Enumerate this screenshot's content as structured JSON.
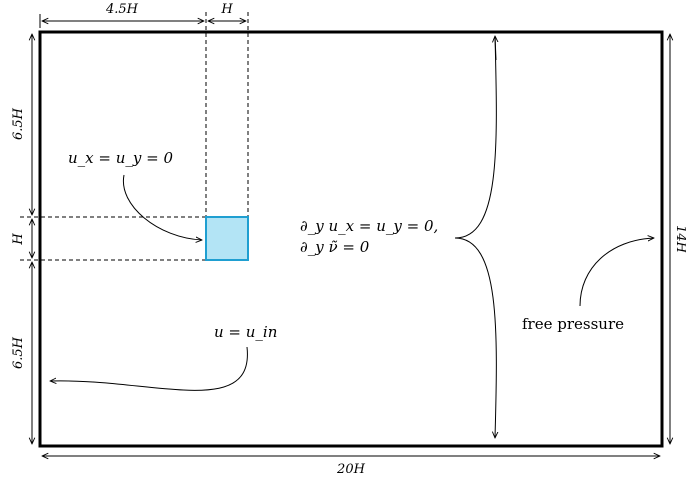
{
  "dimensions": {
    "top_left_width": "4.5H",
    "top_obstacle_width": "H",
    "left_upper_height": "6.5H",
    "left_obstacle_height": "H",
    "left_lower_height": "6.5H",
    "right_height": "14H",
    "bottom_width": "20H"
  },
  "annotations": {
    "obstacle_bc": "u_x = u_y = 0",
    "inlet_bc": "u = u_in",
    "side_bc_line1": "∂_y u_x = u_y = 0,",
    "side_bc_line2": "∂_y ν̃ = 0",
    "outlet_bc": "free pressure"
  },
  "colors": {
    "obstacle_fill": "#b3e4f5",
    "obstacle_stroke": "#1f9fd1",
    "line": "#000000"
  }
}
